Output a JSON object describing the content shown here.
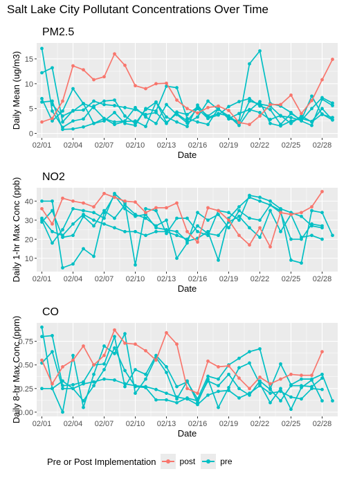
{
  "title": "Salt Lake City Pollutant Concentrations Over Time",
  "colors": {
    "post": "#F8766D",
    "pre": "#00BFC4",
    "panel_bg": "#EBEBEB",
    "grid": "#FFFFFF"
  },
  "legend": {
    "title": "Pre or Post Implementation",
    "entries": [
      "post",
      "pre"
    ]
  },
  "chart_data": [
    {
      "type": "line",
      "title": "PM2.5",
      "xlabel": "Date",
      "ylabel": "Daily Mean (ug/m3)",
      "x": [
        1,
        2,
        3,
        4,
        5,
        6,
        7,
        8,
        9,
        10,
        11,
        12,
        13,
        14,
        15,
        16,
        17,
        18,
        19,
        20,
        21,
        22,
        23,
        24,
        25,
        26,
        27,
        28,
        29
      ],
      "xticks": [
        1,
        4,
        7,
        10,
        13,
        16,
        19,
        22,
        25,
        28
      ],
      "xtick_labels": [
        "02/01",
        "02/04",
        "02/07",
        "02/10",
        "02/13",
        "02/16",
        "02/19",
        "02/22",
        "02/25",
        "02/28"
      ],
      "xlim": [
        0.5,
        29.5
      ],
      "ylim": [
        -0.9,
        18.2
      ],
      "yticks": [
        0,
        5,
        10,
        15
      ],
      "series": [
        {
          "name": "post",
          "values": [
            2.3,
            3.0,
            6.5,
            13.6,
            12.8,
            10.8,
            11.4,
            16.0,
            13.7,
            9.6,
            9.0,
            10.0,
            10.1,
            6.7,
            5.0,
            4.1,
            5.2,
            5.5,
            4.6,
            2.2,
            1.8,
            3.5,
            5.8,
            5.8,
            7.7,
            4.0,
            6.6,
            10.8,
            14.9
          ]
        },
        {
          "name": "pre",
          "values": [
            17.1,
            4.5,
            1.2,
            2.5,
            2.9,
            5.5,
            6.5,
            6.7,
            3.5,
            2.0,
            4.8,
            6.3,
            3.3,
            2.3,
            1.4,
            5.7,
            3.2,
            4.0,
            3.5,
            2.0,
            6.5,
            5.9,
            5.5,
            3.5,
            3.2,
            2.6,
            5.0,
            7.2,
            6.1
          ]
        },
        {
          "name": "pre",
          "values": [
            12.2,
            13.2,
            2.3,
            4.6,
            4.7,
            6.5,
            5.8,
            5.6,
            5.2,
            4.8,
            3.8,
            4.2,
            2.0,
            4.3,
            3.8,
            5.3,
            3.5,
            5.0,
            2.9,
            2.5,
            14.0,
            16.6,
            6.0,
            5.5,
            4.2,
            2.5,
            1.6,
            6.9,
            5.6
          ]
        },
        {
          "name": "pre",
          "values": [
            7.0,
            2.5,
            4.5,
            9.0,
            6.0,
            5.2,
            3.0,
            2.3,
            2.5,
            5.2,
            3.3,
            2.0,
            5.8,
            3.8,
            2.1,
            3.3,
            6.5,
            4.8,
            3.5,
            1.6,
            4.6,
            6.4,
            2.0,
            1.5,
            2.5,
            3.0,
            2.4,
            5.0,
            2.7
          ]
        },
        {
          "name": "pre",
          "values": [
            6.3,
            6.5,
            0.8,
            0.9,
            1.3,
            2.0,
            3.0,
            1.8,
            2.4,
            2.5,
            1.4,
            6.3,
            2.2,
            4.0,
            2.5,
            5.0,
            3.0,
            3.7,
            5.4,
            6.4,
            7.0,
            5.5,
            4.8,
            1.8,
            4.0,
            2.7,
            7.5,
            3.8,
            3.2
          ]
        },
        {
          "name": "pre",
          "values": [
            null,
            5.8,
            3.5,
            4.5,
            6.0,
            2.0,
            2.5,
            4.2,
            2.0,
            1.6,
            5.0,
            4.5,
            9.5,
            9.2,
            3.0,
            2.3,
            1.8,
            5.0,
            3.0,
            4.0,
            4.8,
            4.2,
            2.8,
            3.6,
            2.0,
            3.5,
            2.3,
            3.9,
            2.7
          ]
        }
      ]
    },
    {
      "type": "line",
      "title": "NO2",
      "xlabel": "Date",
      "ylabel": "Daily 1-hr Max Conc (ppb)",
      "x": [
        1,
        2,
        3,
        4,
        5,
        6,
        7,
        8,
        9,
        10,
        11,
        12,
        13,
        14,
        15,
        16,
        17,
        18,
        19,
        20,
        21,
        22,
        23,
        24,
        25,
        26,
        27,
        28,
        29
      ],
      "xticks": [
        1,
        4,
        7,
        10,
        13,
        16,
        19,
        22,
        25,
        28
      ],
      "xtick_labels": [
        "02/01",
        "02/04",
        "02/07",
        "02/10",
        "02/13",
        "02/16",
        "02/19",
        "02/22",
        "02/25",
        "02/28"
      ],
      "xlim": [
        0.5,
        29.5
      ],
      "ylim": [
        3.0,
        47.0
      ],
      "yticks": [
        10,
        20,
        30,
        40
      ],
      "series": [
        {
          "name": "post",
          "values": [
            36.0,
            28.0,
            41.5,
            40.0,
            39.0,
            37.0,
            44.0,
            42.0,
            40.0,
            39.5,
            34.0,
            36.5,
            36.5,
            39.0,
            24.0,
            18.5,
            36.5,
            35.0,
            30.0,
            22.0,
            17.0,
            26.0,
            16.0,
            34.0,
            33.0,
            34.0,
            37.0,
            45.0,
            null
          ]
        },
        {
          "name": "pre",
          "values": [
            40.0,
            40.0,
            5.0,
            7.0,
            15.0,
            11.0,
            34.0,
            43.0,
            36.0,
            32.0,
            33.0,
            26.0,
            25.0,
            24.0,
            19.0,
            20.5,
            24.0,
            9.0,
            31.0,
            37.0,
            42.0,
            40.0,
            38.0,
            35.0,
            9.0,
            7.5,
            35.0,
            34.0,
            22.0
          ]
        },
        {
          "name": "pre",
          "values": [
            30.0,
            18.0,
            25.0,
            36.0,
            35.0,
            34.0,
            31.0,
            44.0,
            39.0,
            6.5,
            36.0,
            35.0,
            23.0,
            31.0,
            31.0,
            24.0,
            22.0,
            35.0,
            34.0,
            30.0,
            43.0,
            42.0,
            40.0,
            36.0,
            34.0,
            32.0,
            27.0,
            26.0,
            null
          ]
        },
        {
          "name": "pre",
          "values": [
            29.0,
            35.0,
            21.0,
            22.0,
            32.0,
            27.0,
            35.0,
            31.0,
            38.0,
            33.0,
            31.0,
            27.0,
            30.0,
            10.0,
            18.0,
            34.0,
            30.0,
            33.0,
            26.0,
            35.0,
            31.0,
            30.0,
            38.0,
            34.0,
            20.0,
            20.0,
            28.0,
            27.0,
            null
          ]
        },
        {
          "name": "pre",
          "values": [
            31.0,
            24.0,
            22.0,
            28.0,
            33.0,
            30.0,
            28.0,
            26.0,
            24.0,
            24.0,
            22.0,
            24.0,
            24.0,
            22.0,
            20.0,
            27.0,
            23.0,
            22.0,
            29.0,
            32.0,
            26.0,
            21.0,
            35.0,
            24.0,
            33.0,
            21.0,
            22.0,
            20.0,
            null
          ]
        }
      ]
    },
    {
      "type": "line",
      "title": "CO",
      "xlabel": "Date",
      "ylabel": "Daily 8-hr Max Conc (ppm)",
      "x": [
        1,
        2,
        3,
        4,
        5,
        6,
        7,
        8,
        9,
        10,
        11,
        12,
        13,
        14,
        15,
        16,
        17,
        18,
        19,
        20,
        21,
        22,
        23,
        24,
        25,
        26,
        27,
        28,
        29
      ],
      "xticks": [
        1,
        4,
        7,
        10,
        13,
        16,
        19,
        22,
        25,
        28
      ],
      "xtick_labels": [
        "02/01",
        "02/04",
        "02/07",
        "02/10",
        "02/13",
        "02/16",
        "02/19",
        "02/22",
        "02/25",
        "02/28"
      ],
      "xlim": [
        0.5,
        29.5
      ],
      "ylim": [
        -0.045,
        0.945
      ],
      "yticks": [
        0.0,
        0.25,
        0.5,
        0.75
      ],
      "ytick_labels": [
        "0.00",
        "0.25",
        "0.50",
        "0.75"
      ],
      "series": [
        {
          "name": "post",
          "values": [
            0.55,
            0.3,
            0.48,
            0.55,
            0.7,
            0.5,
            0.6,
            0.87,
            0.73,
            0.72,
            0.65,
            0.55,
            0.84,
            0.72,
            0.25,
            0.2,
            0.54,
            0.48,
            0.49,
            0.36,
            0.25,
            0.37,
            0.3,
            0.35,
            0.4,
            0.39,
            0.39,
            0.64,
            null
          ]
        },
        {
          "name": "pre",
          "values": [
            0.9,
            0.25,
            0.0,
            0.6,
            0.05,
            0.4,
            0.7,
            0.62,
            0.83,
            0.2,
            0.35,
            0.58,
            0.42,
            0.14,
            0.33,
            0.1,
            0.35,
            0.05,
            0.26,
            0.47,
            0.52,
            0.3,
            0.1,
            0.25,
            0.03,
            0.26,
            0.34,
            0.12,
            null
          ]
        },
        {
          "name": "pre",
          "values": [
            0.8,
            0.81,
            0.28,
            0.29,
            0.32,
            0.5,
            0.51,
            0.8,
            0.27,
            0.45,
            0.4,
            0.6,
            0.48,
            0.27,
            0.32,
            0.14,
            0.38,
            0.35,
            0.5,
            0.57,
            0.64,
            0.67,
            0.25,
            0.51,
            0.29,
            0.35,
            0.35,
            0.4,
            0.12
          ]
        },
        {
          "name": "pre",
          "values": [
            0.52,
            0.64,
            0.25,
            0.25,
            0.12,
            0.28,
            0.45,
            0.68,
            0.44,
            0.27,
            0.26,
            0.13,
            0.13,
            0.1,
            0.15,
            0.12,
            0.33,
            0.28,
            0.4,
            0.25,
            0.18,
            0.33,
            0.24,
            0.12,
            0.28,
            0.28,
            0.27,
            0.36,
            null
          ]
        },
        {
          "name": "pre",
          "values": [
            0.25,
            0.25,
            0.33,
            0.25,
            0.3,
            0.32,
            0.35,
            0.34,
            0.3,
            0.28,
            0.27,
            0.24,
            0.2,
            0.16,
            0.14,
            0.08,
            0.18,
            0.22,
            0.23,
            0.15,
            0.2,
            0.28,
            0.2,
            0.22,
            0.16,
            0.14,
            0.25,
            0.24,
            null
          ]
        }
      ]
    }
  ]
}
